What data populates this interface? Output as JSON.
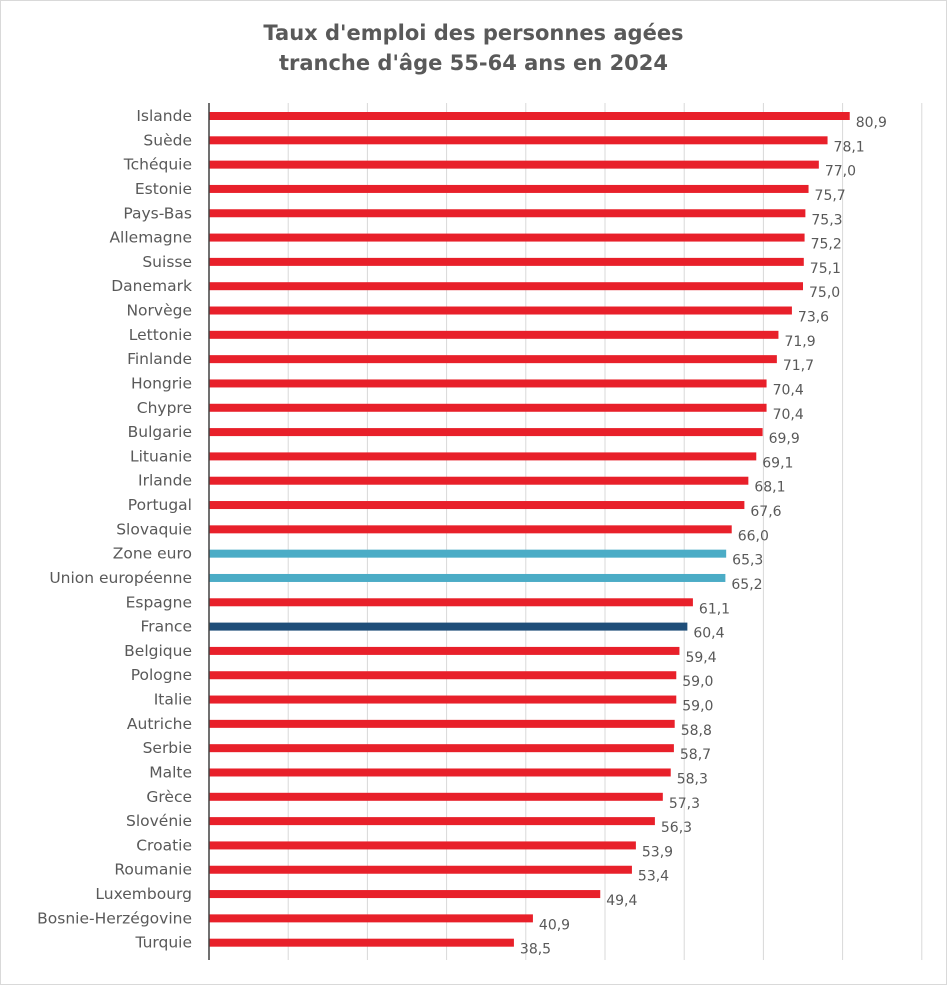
{
  "chart_data": {
    "type": "bar",
    "orientation": "horizontal",
    "title": [
      "Taux d'emploi des personnes agées",
      "tranche d'âge 55-64 ans en 2024"
    ],
    "xlim": [
      0,
      90
    ],
    "grid": true,
    "colors": {
      "default": "#e8202a",
      "aggregate": "#4bacc6",
      "highlight": "#1f4e79"
    },
    "categories": [
      "Islande",
      "Suède",
      "Tchéquie",
      "Estonie",
      "Pays-Bas",
      "Allemagne",
      "Suisse",
      "Danemark",
      "Norvège",
      "Lettonie",
      "Finlande",
      "Hongrie",
      "Chypre",
      "Bulgarie",
      "Lituanie",
      "Irlande",
      "Portugal",
      "Slovaquie",
      "Zone euro",
      "Union européenne",
      "Espagne",
      "France",
      "Belgique",
      "Pologne",
      "Italie",
      "Autriche",
      "Serbie",
      "Malte",
      "Grèce",
      "Slovénie",
      "Croatie",
      "Roumanie",
      "Luxembourg",
      "Bosnie-Herzégovine",
      "Turquie"
    ],
    "values": [
      80.9,
      78.1,
      77.0,
      75.7,
      75.3,
      75.2,
      75.1,
      75.0,
      73.6,
      71.9,
      71.7,
      70.4,
      70.4,
      69.9,
      69.1,
      68.1,
      67.6,
      66.0,
      65.3,
      65.2,
      61.1,
      60.4,
      59.4,
      59.0,
      59.0,
      58.8,
      58.7,
      58.3,
      57.3,
      56.3,
      53.9,
      53.4,
      49.4,
      40.9,
      38.5
    ],
    "labels": [
      "80,9",
      "78,1",
      "77,0",
      "75,7",
      "75,3",
      "75,2",
      "75,1",
      "75,0",
      "73,6",
      "71,9",
      "71,7",
      "70,4",
      "70,4",
      "69,9",
      "69,1",
      "68,1",
      "67,6",
      "66,0",
      "65,3",
      "65,2",
      "61,1",
      "60,4",
      "59,4",
      "59,0",
      "59,0",
      "58,8",
      "58,7",
      "58,3",
      "57,3",
      "56,3",
      "53,9",
      "53,4",
      "49,4",
      "40,9",
      "38,5"
    ],
    "color_keys": [
      "default",
      "default",
      "default",
      "default",
      "default",
      "default",
      "default",
      "default",
      "default",
      "default",
      "default",
      "default",
      "default",
      "default",
      "default",
      "default",
      "default",
      "default",
      "aggregate",
      "aggregate",
      "default",
      "highlight",
      "default",
      "default",
      "default",
      "default",
      "default",
      "default",
      "default",
      "default",
      "default",
      "default",
      "default",
      "default",
      "default"
    ]
  }
}
